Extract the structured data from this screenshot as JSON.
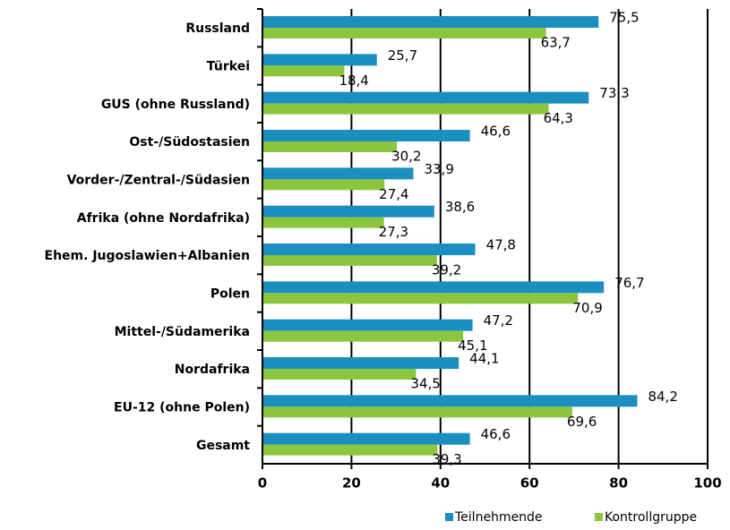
{
  "chart_data": {
    "type": "barh",
    "categories": [
      "Russland",
      "Türkei",
      "GUS (ohne Russland)",
      "Ost-/Südostasien",
      "Vorder-/Zentral-/Südasien",
      "Afrika (ohne Nordafrika)",
      "Ehem. Jugoslawien+Albanien",
      "Polen",
      "Mittel-/Südamerika",
      "Nordafrika",
      "EU-12 (ohne Polen)",
      "Gesamt"
    ],
    "series": [
      {
        "name": "Teilnehmende",
        "color": "#1a8fc0",
        "values": [
          75.5,
          25.7,
          73.3,
          46.6,
          33.9,
          38.6,
          47.8,
          76.7,
          47.2,
          44.1,
          84.2,
          46.6
        ],
        "value_labels": [
          "75,5",
          "25,7",
          "73,3",
          "46,6",
          "33,9",
          "38,6",
          "47,8",
          "76,7",
          "47,2",
          "44,1",
          "84,2",
          "46,6"
        ]
      },
      {
        "name": "Kontrollgruppe",
        "color": "#8cc63f",
        "values": [
          63.7,
          18.4,
          64.3,
          30.2,
          27.4,
          27.3,
          39.2,
          70.9,
          45.1,
          34.5,
          69.6,
          39.3
        ],
        "value_labels": [
          "63,7",
          "18,4",
          "64,3",
          "30,2",
          "27,4",
          "27,3",
          "39,2",
          "70,9",
          "45,1",
          "34,5",
          "69,6",
          "39,3"
        ]
      }
    ],
    "xlim": [
      0,
      100
    ],
    "xticks": [
      0,
      20,
      40,
      60,
      80,
      100
    ],
    "grid": true,
    "legend": "bottom-right"
  }
}
